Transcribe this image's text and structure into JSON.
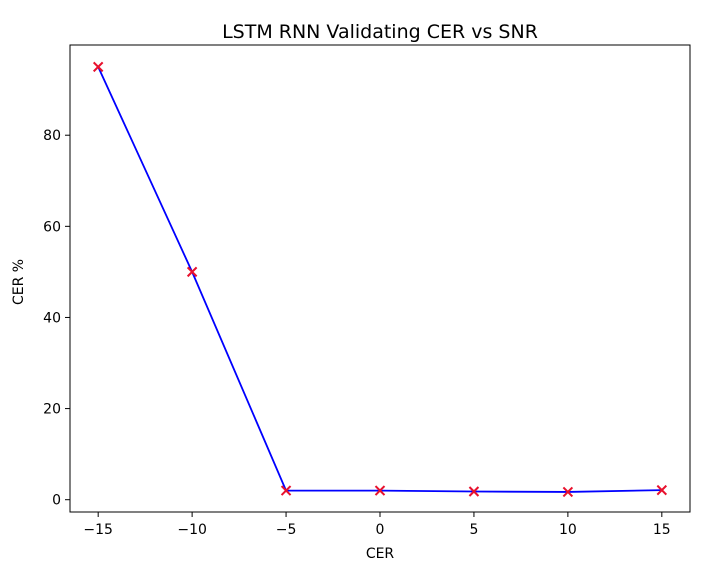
{
  "chart_data": {
    "type": "line",
    "title": "LSTM RNN Validating CER vs SNR",
    "xlabel": "CER",
    "ylabel": "CER %",
    "x": [
      -15,
      -10,
      -5,
      0,
      5,
      10,
      15
    ],
    "series": [
      {
        "values": [
          95,
          50,
          2,
          2,
          1.8,
          1.7,
          2.1
        ],
        "line_color": "#0000ff",
        "marker": "x",
        "marker_color": "#e8112d"
      }
    ],
    "x_ticks": [
      -15,
      -10,
      -5,
      0,
      5,
      10,
      15
    ],
    "x_tick_labels": [
      "−15",
      "−10",
      "−5",
      "0",
      "5",
      "10",
      "15"
    ],
    "y_ticks": [
      0,
      20,
      40,
      60,
      80
    ],
    "y_tick_labels": [
      "0",
      "20",
      "40",
      "60",
      "80"
    ],
    "xlim": [
      -16.5,
      16.5
    ],
    "ylim": [
      -2.7,
      99.8
    ],
    "grid": false,
    "legend": "none"
  }
}
